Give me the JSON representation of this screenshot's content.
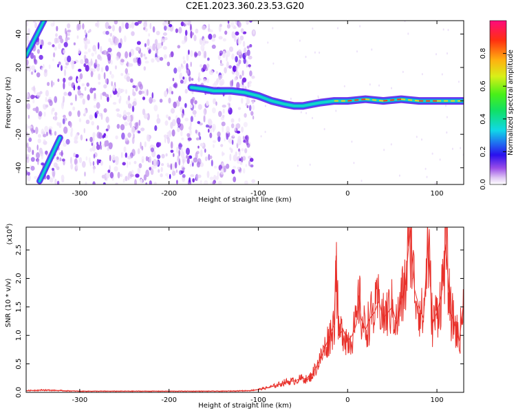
{
  "title": "C2E1.2023.360.23.53.G20",
  "chart_data": [
    {
      "type": "heatmap",
      "xlabel": "Height of straight line (km)",
      "ylabel": "Frequency (Hz)",
      "xlim": [
        -360,
        130
      ],
      "ylim": [
        -50,
        48
      ],
      "x_ticks": [
        -300,
        -200,
        -100,
        0,
        100
      ],
      "y_ticks": [
        -40,
        -20,
        0,
        20,
        40
      ],
      "colorbar": {
        "label": "Normalized spectral amplitude",
        "range": [
          0,
          1
        ],
        "ticks": [
          0.0,
          0.2,
          0.4,
          0.6,
          0.8
        ]
      },
      "noise_region_x": [
        -360,
        -105
      ],
      "tracks": [
        {
          "x": [
            -175,
            -160,
            -150,
            -130,
            -115,
            -100,
            -85,
            -70,
            -60,
            -50,
            -40,
            -30,
            -15,
            0,
            20,
            40,
            60,
            80,
            100,
            130
          ],
          "y": [
            8,
            7,
            6,
            6,
            5,
            3,
            0,
            -2,
            -3,
            -3,
            -2,
            -1,
            0,
            0,
            1,
            0,
            1,
            0,
            0,
            0
          ]
        },
        {
          "x": [
            -360,
            -340
          ],
          "y": [
            27,
            48
          ]
        },
        {
          "x": [
            -345,
            -322
          ],
          "y": [
            -48,
            -22
          ]
        }
      ]
    },
    {
      "type": "line",
      "xlabel": "Height of straight line (km)",
      "ylabel": "SNR (10 * v/v)",
      "multiplier_label": "(x10",
      "multiplier_exp": "4",
      "multiplier_close": ")",
      "xlim": [
        -360,
        130
      ],
      "ylim": [
        0,
        2.9
      ],
      "x_ticks": [
        -300,
        -200,
        -100,
        0,
        100
      ],
      "y_ticks": [
        0.0,
        0.5,
        1.0,
        1.5,
        2.0,
        2.5
      ],
      "series": [
        {
          "color": "#e8302a",
          "x": [
            -360,
            -340,
            -300,
            -260,
            -220,
            -180,
            -140,
            -110,
            -100,
            -90,
            -80,
            -70,
            -60,
            -50,
            -45,
            -40,
            -35,
            -30,
            -25,
            -20,
            -15,
            -13,
            -10,
            -5,
            0,
            5,
            10,
            13,
            15,
            20,
            25,
            30,
            35,
            40,
            45,
            50,
            55,
            60,
            65,
            70,
            75,
            80,
            85,
            90,
            95,
            100,
            105,
            110,
            115,
            120,
            125,
            130
          ],
          "y": [
            0.03,
            0.04,
            0.02,
            0.02,
            0.02,
            0.02,
            0.02,
            0.03,
            0.05,
            0.08,
            0.12,
            0.18,
            0.2,
            0.25,
            0.22,
            0.3,
            0.45,
            0.6,
            0.8,
            1.0,
            1.2,
            2.4,
            1.0,
            1.1,
            0.9,
            1.0,
            1.2,
            1.7,
            1.3,
            1.1,
            1.3,
            1.4,
            1.6,
            1.3,
            1.4,
            1.5,
            1.2,
            1.6,
            1.9,
            2.9,
            1.8,
            1.5,
            1.3,
            2.65,
            1.2,
            1.4,
            1.7,
            2.6,
            1.4,
            1.2,
            0.9,
            1.6
          ]
        }
      ]
    }
  ]
}
